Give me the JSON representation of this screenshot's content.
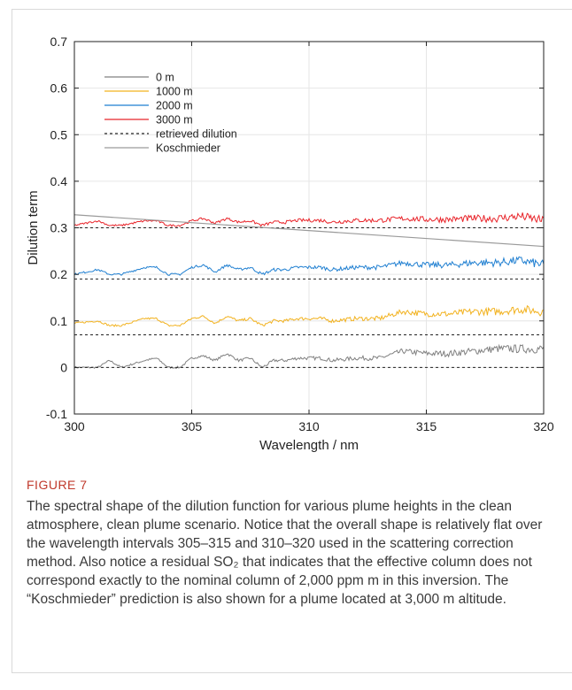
{
  "chart_data": {
    "type": "line",
    "xlabel": "Wavelength / nm",
    "ylabel": "Dilution term",
    "xlim": [
      300,
      320
    ],
    "ylim": [
      -0.1,
      0.7
    ],
    "x_ticks": [
      300,
      305,
      310,
      315,
      320
    ],
    "y_ticks": [
      -0.1,
      0,
      0.1,
      0.2,
      0.3,
      0.4,
      0.5,
      0.6,
      0.7
    ],
    "x_tick_labels": [
      "300",
      "305",
      "310",
      "315",
      "320"
    ],
    "y_tick_labels": [
      "-0.1",
      "0",
      "0.1",
      "0.2",
      "0.3",
      "0.4",
      "0.5",
      "0.6",
      "0.7"
    ],
    "grid": true,
    "legend_position": "top-left",
    "series": [
      {
        "name": "0 m",
        "color": "#808080",
        "style": "solid-noisy",
        "baseline": 0.0,
        "x": [
          300,
          301,
          301.5,
          302,
          303,
          303.5,
          304,
          304.5,
          305,
          305.5,
          306,
          306.5,
          307,
          307.5,
          308,
          308.5,
          309,
          309.5,
          310,
          310.5,
          311,
          312,
          313,
          314,
          315,
          316,
          317,
          318,
          319,
          320
        ],
        "values": [
          0.0,
          0.0,
          0.015,
          0.0,
          0.015,
          0.02,
          0.0,
          0.0,
          0.02,
          0.025,
          0.015,
          0.03,
          0.015,
          0.02,
          0.0,
          0.015,
          0.015,
          0.02,
          0.02,
          0.02,
          0.015,
          0.02,
          0.02,
          0.035,
          0.03,
          0.03,
          0.035,
          0.04,
          0.04,
          0.04
        ]
      },
      {
        "name": "1000 m",
        "color": "#f2b21f",
        "style": "solid-noisy",
        "baseline": 0.07,
        "x": [
          300,
          301,
          301.5,
          302,
          303,
          303.5,
          304,
          304.5,
          305,
          305.5,
          306,
          306.5,
          307,
          307.5,
          308,
          308.5,
          309,
          309.5,
          310,
          310.5,
          311,
          312,
          313,
          314,
          315,
          316,
          317,
          318,
          319,
          320
        ],
        "values": [
          0.095,
          0.1,
          0.09,
          0.09,
          0.105,
          0.105,
          0.09,
          0.09,
          0.105,
          0.11,
          0.095,
          0.11,
          0.1,
          0.105,
          0.09,
          0.1,
          0.1,
          0.105,
          0.105,
          0.105,
          0.1,
          0.105,
          0.105,
          0.12,
          0.115,
          0.115,
          0.12,
          0.12,
          0.125,
          0.12
        ]
      },
      {
        "name": "2000 m",
        "color": "#1f7fd1",
        "style": "solid-noisy",
        "baseline": 0.19,
        "x": [
          300,
          301,
          301.5,
          302,
          303,
          303.5,
          304,
          304.5,
          305,
          305.5,
          306,
          306.5,
          307,
          307.5,
          308,
          308.5,
          309,
          309.5,
          310,
          310.5,
          311,
          312,
          313,
          314,
          315,
          316,
          317,
          318,
          319,
          320
        ],
        "values": [
          0.2,
          0.21,
          0.2,
          0.2,
          0.215,
          0.215,
          0.2,
          0.2,
          0.215,
          0.22,
          0.205,
          0.22,
          0.21,
          0.215,
          0.2,
          0.21,
          0.21,
          0.215,
          0.215,
          0.215,
          0.21,
          0.215,
          0.215,
          0.225,
          0.22,
          0.22,
          0.225,
          0.225,
          0.23,
          0.22
        ]
      },
      {
        "name": "3000 m",
        "color": "#e8242a",
        "style": "solid-noisy",
        "baseline": 0.3,
        "x": [
          300,
          301,
          301.5,
          302,
          303,
          303.5,
          304,
          304.5,
          305,
          305.5,
          306,
          306.5,
          307,
          307.5,
          308,
          308.5,
          309,
          309.5,
          310,
          310.5,
          311,
          312,
          313,
          314,
          315,
          316,
          317,
          318,
          319,
          320
        ],
        "values": [
          0.305,
          0.315,
          0.305,
          0.305,
          0.315,
          0.315,
          0.305,
          0.305,
          0.315,
          0.32,
          0.31,
          0.32,
          0.312,
          0.315,
          0.305,
          0.312,
          0.312,
          0.316,
          0.316,
          0.316,
          0.312,
          0.316,
          0.316,
          0.32,
          0.318,
          0.318,
          0.32,
          0.32,
          0.325,
          0.315
        ]
      },
      {
        "name": "retrieved dilution",
        "color": "#222222",
        "style": "dashed",
        "x": [
          300,
          320
        ],
        "levels": [
          0.0,
          0.07,
          0.19,
          0.3
        ]
      },
      {
        "name": "Koschmieder",
        "color": "#9a9a9a",
        "style": "solid",
        "x": [
          300,
          320
        ],
        "values": [
          0.328,
          0.26
        ]
      }
    ]
  },
  "caption": {
    "label": "FIGURE 7",
    "text": "The spectral shape of the dilution function for various plume heights in the clean atmosphere, clean plume scenario. Notice that the overall shape is relatively flat over the wavelength intervals 305–315 and 310–320 used in the scattering correction method. Also notice a residual SO₂ that indicates that the effective column does not correspond exactly to the nominal column of 2,000 ppm m in this inversion. The “Koschmieder” prediction is also shown for a plume located at 3,000 m altitude."
  },
  "colors": {
    "frame": "#d9d9d9",
    "grid": "#e6e6e6",
    "caption_label": "#c0392b"
  }
}
